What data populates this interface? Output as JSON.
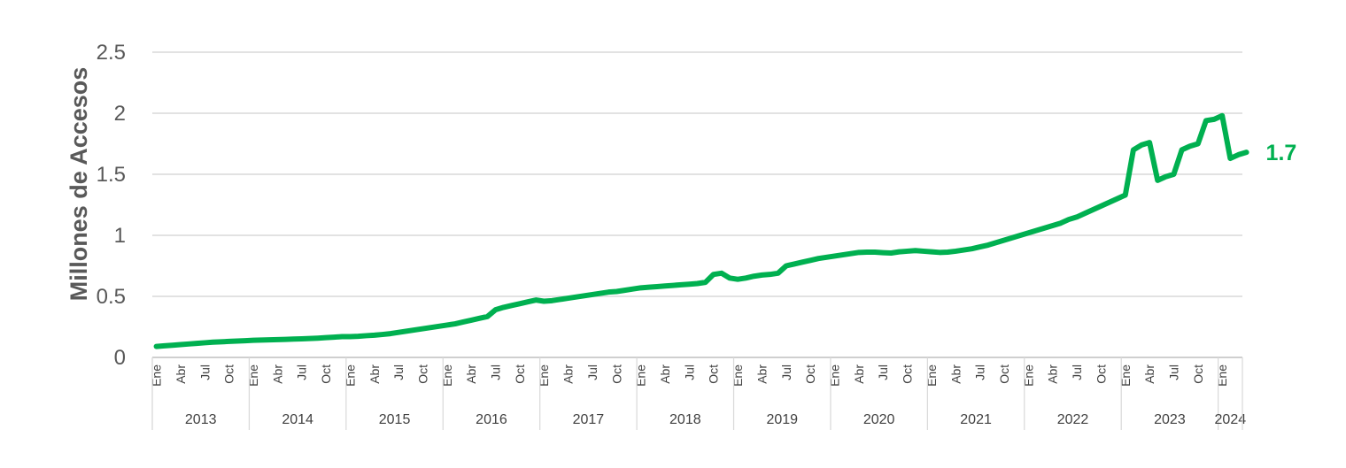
{
  "chart_data": {
    "type": "line",
    "title": "",
    "ylabel": "Millones de Accesos",
    "xlabel": "",
    "ylim": [
      0,
      2.5
    ],
    "yticks": [
      "0",
      "0.5",
      "1",
      "1.5",
      "2",
      "2.5"
    ],
    "grid": true,
    "legend": "none",
    "line_color": "#00B050",
    "month_tick_labels": [
      "Ene",
      "Abr",
      "Jul",
      "Oct"
    ],
    "years": [
      "2013",
      "2014",
      "2015",
      "2016",
      "2017",
      "2018",
      "2019",
      "2020",
      "2021",
      "2022",
      "2023",
      "2024"
    ],
    "end_label": "1.7",
    "series": [
      {
        "x_start": "2013-01",
        "x_end": "2024-03",
        "values": [
          0.09,
          0.095,
          0.1,
          0.105,
          0.11,
          0.115,
          0.12,
          0.125,
          0.128,
          0.131,
          0.134,
          0.137,
          0.14,
          0.142,
          0.144,
          0.146,
          0.148,
          0.15,
          0.152,
          0.155,
          0.158,
          0.162,
          0.166,
          0.17,
          0.17,
          0.173,
          0.178,
          0.182,
          0.188,
          0.195,
          0.205,
          0.215,
          0.225,
          0.235,
          0.245,
          0.255,
          0.265,
          0.275,
          0.29,
          0.305,
          0.32,
          0.335,
          0.39,
          0.41,
          0.425,
          0.44,
          0.455,
          0.47,
          0.46,
          0.465,
          0.475,
          0.485,
          0.495,
          0.505,
          0.515,
          0.525,
          0.535,
          0.54,
          0.55,
          0.56,
          0.57,
          0.575,
          0.58,
          0.585,
          0.59,
          0.595,
          0.6,
          0.605,
          0.615,
          0.68,
          0.69,
          0.65,
          0.64,
          0.65,
          0.665,
          0.675,
          0.68,
          0.69,
          0.75,
          0.765,
          0.78,
          0.795,
          0.81,
          0.82,
          0.83,
          0.84,
          0.85,
          0.86,
          0.862,
          0.862,
          0.858,
          0.855,
          0.865,
          0.87,
          0.875,
          0.87,
          0.865,
          0.86,
          0.862,
          0.87,
          0.88,
          0.89,
          0.905,
          0.92,
          0.94,
          0.96,
          0.98,
          1.0,
          1.02,
          1.04,
          1.06,
          1.08,
          1.1,
          1.13,
          1.15,
          1.18,
          1.21,
          1.24,
          1.27,
          1.3,
          1.33,
          1.7,
          1.74,
          1.76,
          1.45,
          1.48,
          1.5,
          1.7,
          1.73,
          1.75,
          1.94,
          1.95,
          1.98,
          1.63,
          1.66,
          1.68
        ]
      }
    ]
  }
}
